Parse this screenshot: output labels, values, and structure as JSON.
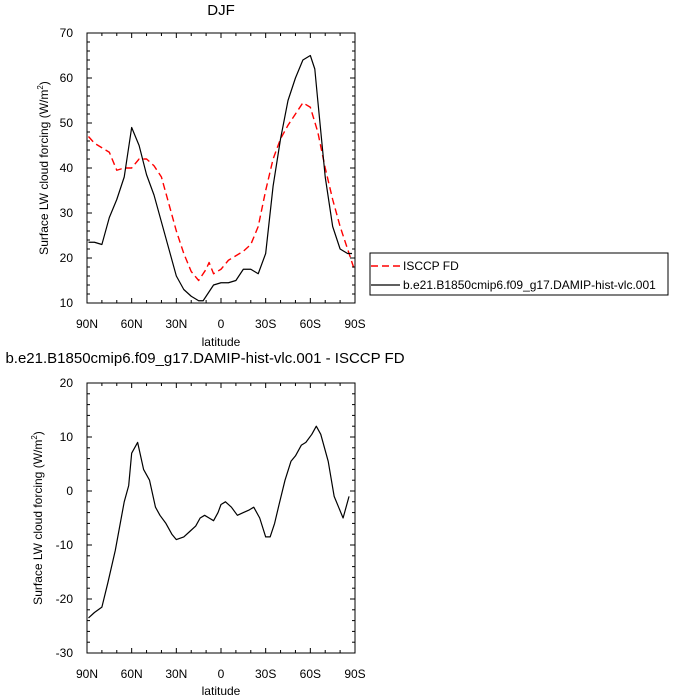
{
  "chart_data": [
    {
      "type": "line",
      "title": "DJF",
      "xlabel": "latitude",
      "ylabel": "Surface LW cloud forcing (W/m²)",
      "ylabel_main": "Surface LW cloud forcing (W/m",
      "ylabel_sup": "2",
      "ylabel_close": ")",
      "xlim": [
        90,
        -90
      ],
      "ylim": [
        10,
        70
      ],
      "x_ticks": [
        90,
        60,
        30,
        0,
        -30,
        -60,
        -90
      ],
      "x_tick_labels": [
        "90N",
        "60N",
        "30N",
        "0",
        "30S",
        "60S",
        "90S"
      ],
      "y_ticks": [
        10,
        20,
        30,
        40,
        50,
        60,
        70
      ],
      "y_tick_labels": [
        "10",
        "20",
        "30",
        "40",
        "50",
        "60",
        "70"
      ],
      "grid": false,
      "legend_position": "right",
      "series": [
        {
          "name": "ISCCP FD",
          "color": "#ff0000",
          "dash": "dashed",
          "x": [
            89,
            85,
            80,
            75,
            70,
            65,
            60,
            55,
            50,
            45,
            40,
            35,
            30,
            25,
            20,
            15,
            10,
            8,
            5,
            0,
            -5,
            -10,
            -15,
            -20,
            -25,
            -30,
            -35,
            -40,
            -45,
            -50,
            -55,
            -60,
            -65,
            -70,
            -75,
            -80,
            -85,
            -90
          ],
          "values": [
            47.0,
            45.5,
            44.5,
            43.5,
            39.5,
            40.0,
            40.0,
            42.0,
            42.0,
            40.5,
            38.0,
            32.0,
            26.0,
            21.0,
            17.0,
            15.0,
            17.5,
            19.0,
            16.5,
            17.5,
            19.5,
            20.5,
            21.5,
            23.0,
            27.0,
            35.0,
            42.0,
            46.5,
            49.5,
            52.0,
            54.5,
            53.5,
            48.0,
            40.0,
            33.0,
            27.0,
            22.0,
            17.0
          ]
        },
        {
          "name": "b.e21.B1850cmip6.f09_g17.DAMIP-hist-vlc.001",
          "color": "#000000",
          "dash": "solid",
          "x": [
            89,
            85,
            80,
            75,
            70,
            65,
            60,
            55,
            50,
            45,
            40,
            35,
            30,
            25,
            20,
            15,
            12,
            10,
            5,
            0,
            -5,
            -10,
            -15,
            -20,
            -25,
            -30,
            -35,
            -40,
            -45,
            -50,
            -55,
            -60,
            -63,
            -65,
            -70,
            -75,
            -80,
            -85,
            -88
          ],
          "values": [
            23.5,
            23.5,
            23.0,
            29.0,
            33.0,
            38.0,
            49.0,
            45.0,
            38.5,
            34.0,
            28.0,
            22.0,
            16.0,
            13.0,
            11.5,
            10.5,
            10.5,
            11.5,
            14.0,
            14.5,
            14.5,
            15.0,
            17.5,
            17.5,
            16.5,
            21.0,
            36.0,
            46.5,
            55.0,
            60.0,
            64.0,
            65.0,
            62.0,
            55.0,
            38.0,
            27.0,
            22.0,
            21.0,
            21.0
          ]
        }
      ]
    },
    {
      "type": "line",
      "title": "b.e21.B1850cmip6.f09_g17.DAMIP-hist-vlc.001 - ISCCP FD",
      "xlabel": "latitude",
      "ylabel": "Surface LW cloud forcing (W/m²)",
      "ylabel_main": "Surface LW cloud forcing (W/m",
      "ylabel_sup": "2",
      "ylabel_close": ")",
      "xlim": [
        90,
        -90
      ],
      "ylim": [
        -30,
        20
      ],
      "x_ticks": [
        90,
        60,
        30,
        0,
        -30,
        -60,
        -90
      ],
      "x_tick_labels": [
        "90N",
        "60N",
        "30N",
        "0",
        "30S",
        "60S",
        "90S"
      ],
      "y_ticks": [
        -30,
        -20,
        -10,
        0,
        10,
        20
      ],
      "y_tick_labels": [
        "-30",
        "-20",
        "-10",
        "0",
        "10",
        "20"
      ],
      "grid": false,
      "series": [
        {
          "color": "#000000",
          "dash": "solid",
          "x": [
            89,
            85,
            80,
            76,
            71,
            67,
            65,
            62,
            60,
            56,
            52,
            48,
            44,
            41,
            37,
            33,
            30,
            25,
            21,
            17,
            14,
            11,
            8,
            5,
            2,
            0,
            -3,
            -7,
            -11,
            -15,
            -19,
            -22,
            -26,
            -30,
            -33,
            -36,
            -39,
            -43,
            -47,
            -50,
            -54,
            -57,
            -61,
            -64,
            -67,
            -72,
            -76,
            -79,
            -82,
            -86
          ],
          "values": [
            -23.5,
            -22.5,
            -21.5,
            -17,
            -11,
            -5,
            -2,
            1,
            7,
            9,
            4,
            2,
            -3,
            -4.5,
            -6,
            -8,
            -9,
            -8.5,
            -7.5,
            -6.5,
            -5,
            -4.5,
            -5,
            -5.5,
            -4,
            -2.5,
            -2,
            -3,
            -4.5,
            -4,
            -3.5,
            -3,
            -5,
            -8.5,
            -8.5,
            -6,
            -2.5,
            2,
            5.5,
            6.5,
            8.5,
            9,
            10.5,
            12,
            10.5,
            5.5,
            -1,
            -3,
            -5,
            -1
          ]
        }
      ]
    }
  ]
}
